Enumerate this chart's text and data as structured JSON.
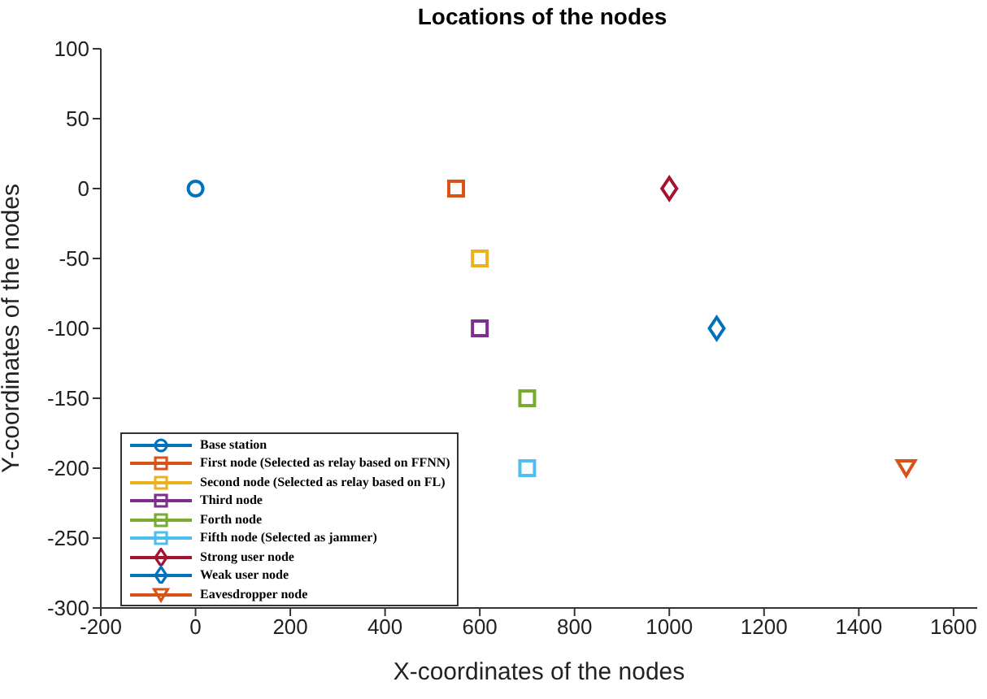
{
  "chart_data": {
    "type": "scatter",
    "title": "Locations of the nodes",
    "xlabel": "X-coordinates of the nodes",
    "ylabel": "Y-coordinates of the nodes",
    "xlim": [
      -200,
      1650
    ],
    "xticks": [
      -200,
      0,
      200,
      400,
      600,
      800,
      1000,
      1200,
      1400,
      1600
    ],
    "ylim": [
      -300,
      100
    ],
    "yticks": [
      -300,
      -250,
      -200,
      -150,
      -100,
      -50,
      0,
      50,
      100
    ],
    "grid": false,
    "legend": "bottom left",
    "series": [
      {
        "name": "Base station",
        "color": "#0072bd",
        "marker": "circle",
        "x": [
          0
        ],
        "values": [
          0
        ]
      },
      {
        "name": "First node (Selected as relay based on FFNN)",
        "color": "#d95319",
        "marker": "square",
        "x": [
          550
        ],
        "values": [
          0
        ]
      },
      {
        "name": "Second node (Selected as relay based on FL)",
        "color": "#edb120",
        "marker": "square",
        "x": [
          600
        ],
        "values": [
          -50
        ]
      },
      {
        "name": "Third node",
        "color": "#7e2f8e",
        "marker": "square",
        "x": [
          600
        ],
        "values": [
          -100
        ]
      },
      {
        "name": "Forth node",
        "color": "#77ac30",
        "marker": "square",
        "x": [
          700
        ],
        "values": [
          -150
        ]
      },
      {
        "name": "Fifth node (Selected as jammer)",
        "color": "#4dbeee",
        "marker": "square",
        "x": [
          700
        ],
        "values": [
          -200
        ]
      },
      {
        "name": "Strong user node",
        "color": "#a2142f",
        "marker": "diamond",
        "x": [
          1000
        ],
        "values": [
          0
        ]
      },
      {
        "name": "Weak user node",
        "color": "#0072bd",
        "marker": "diamond",
        "x": [
          1100
        ],
        "values": [
          -100
        ]
      },
      {
        "name": "Eavesdropper node",
        "color": "#d95319",
        "marker": "triangle",
        "x": [
          1500
        ],
        "values": [
          -200
        ]
      }
    ]
  }
}
